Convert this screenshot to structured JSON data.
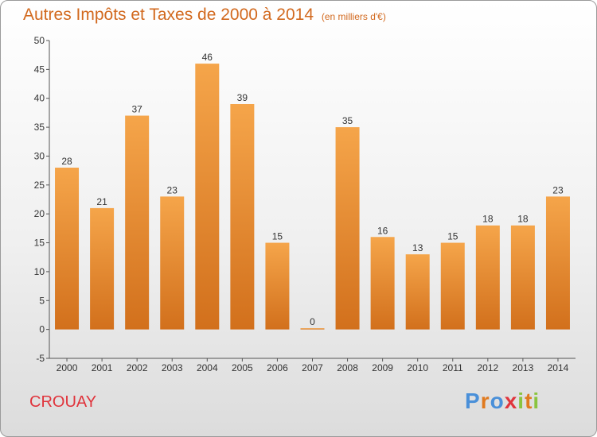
{
  "header": {
    "title": "Autres Impôts et Taxes de 2000 à 2014",
    "unit": "(en milliers d'€)"
  },
  "footer": {
    "commune": "CROUAY",
    "brand": "Proxiti"
  },
  "colors": {
    "bar_light": "#f5a54a",
    "bar_dark": "#d2701c",
    "title": "#d2691e",
    "commune": "#e0343c",
    "brand_letters": [
      "#4a90d9",
      "#e07a1f",
      "#4a90d9",
      "#e0343c",
      "#8ac43f",
      "#e07a1f",
      "#8ac43f"
    ]
  },
  "chart_data": {
    "type": "bar",
    "categories": [
      "2000",
      "2001",
      "2002",
      "2003",
      "2004",
      "2005",
      "2006",
      "2007",
      "2008",
      "2009",
      "2010",
      "2011",
      "2012",
      "2013",
      "2014"
    ],
    "values": [
      28,
      21,
      37,
      23,
      46,
      39,
      15,
      0,
      35,
      16,
      13,
      15,
      18,
      18,
      23
    ],
    "ylim": [
      -5,
      50
    ],
    "yticks": [
      -5,
      0,
      5,
      10,
      15,
      20,
      25,
      30,
      35,
      40,
      45,
      50
    ],
    "grid": false,
    "legend": "none"
  }
}
